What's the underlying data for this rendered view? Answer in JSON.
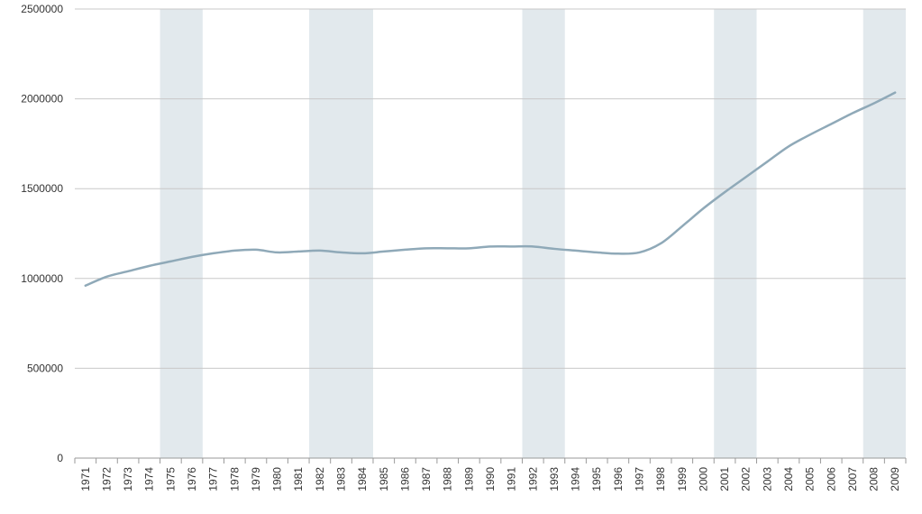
{
  "colors": {
    "background": "#ffffff",
    "line": "#8fa9b8",
    "band": "#e2e9ed",
    "grid": "#c8c8c8",
    "axis": "#9a9a9a",
    "text": "#333333"
  },
  "chart_data": {
    "type": "line",
    "title": "",
    "xlabel": "",
    "ylabel": "",
    "ylim": [
      0,
      2500000
    ],
    "yticks": [
      "0",
      "500000",
      "1000000",
      "1500000",
      "2000000",
      "2500000"
    ],
    "grid": true,
    "legend": "none",
    "x": [
      "1971",
      "1972",
      "1973",
      "1974",
      "1975",
      "1976",
      "1977",
      "1978",
      "1979",
      "1980",
      "1981",
      "1982",
      "1983",
      "1984",
      "1985",
      "1986",
      "1987",
      "1988",
      "1989",
      "1990",
      "1991",
      "1992",
      "1993",
      "1994",
      "1995",
      "1996",
      "1997",
      "1998",
      "1999",
      "2000",
      "2001",
      "2002",
      "2003",
      "2004",
      "2005",
      "2006",
      "2007",
      "2008",
      "2009"
    ],
    "series": [
      {
        "values": [
          960000,
          1010000,
          1040000,
          1070000,
          1095000,
          1120000,
          1140000,
          1155000,
          1160000,
          1145000,
          1150000,
          1155000,
          1145000,
          1140000,
          1150000,
          1160000,
          1168000,
          1168000,
          1168000,
          1178000,
          1178000,
          1178000,
          1165000,
          1155000,
          1145000,
          1138000,
          1145000,
          1195000,
          1290000,
          1390000,
          1480000,
          1565000,
          1650000,
          1735000,
          1800000,
          1860000,
          1920000,
          1975000,
          2035000
        ]
      }
    ],
    "shaded_periods": [
      {
        "start": "1975",
        "end": "1976"
      },
      {
        "start": "1982",
        "end": "1984"
      },
      {
        "start": "1992",
        "end": "1993"
      },
      {
        "start": "2001",
        "end": "2002"
      },
      {
        "start": "2008",
        "end": "2009"
      }
    ]
  }
}
